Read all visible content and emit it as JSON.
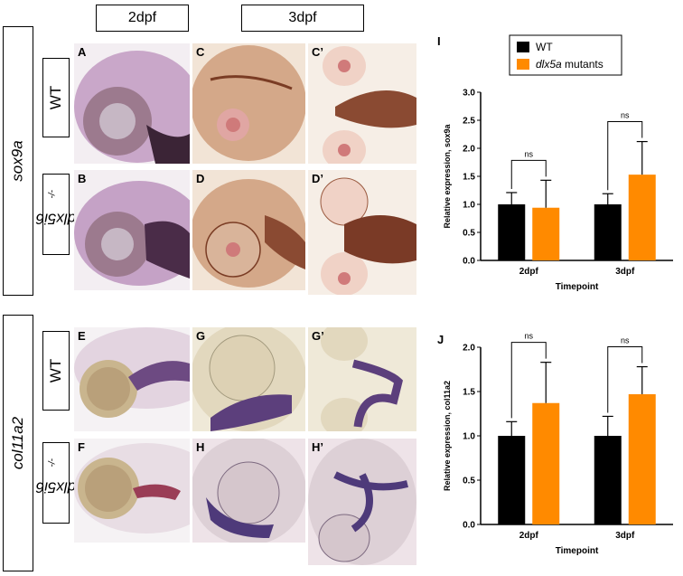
{
  "headers": {
    "col1": "2dpf",
    "col2": "3dpf"
  },
  "genes": {
    "top": "sox9a",
    "bottom": "col11a2"
  },
  "genotypes": {
    "wt": "WT",
    "mut_base": "dlx5i6",
    "mut_sup": "-/-"
  },
  "panels": {
    "A": "A",
    "B": "B",
    "C": "C",
    "C2": "C’",
    "D": "D",
    "D2": "D’",
    "E": "E",
    "F": "F",
    "G": "G",
    "G2": "G’",
    "H": "H",
    "H2": "H’"
  },
  "colors": {
    "wt": "#000000",
    "mutant": "#ff8a00",
    "sox9_stain": "#b06a4a",
    "col_stain": "#6b3f8c"
  },
  "chart_data": [
    {
      "type": "bar",
      "panel_label": "I",
      "categories": [
        "2dpf",
        "3dpf"
      ],
      "series": [
        {
          "name": "WT",
          "values": [
            1.0,
            1.0
          ],
          "errors": [
            0.21,
            0.19
          ]
        },
        {
          "name": "dlx5a mutants",
          "values": [
            0.94,
            1.53
          ],
          "errors": [
            0.49,
            0.59
          ]
        }
      ],
      "xlabel": "Timepoint",
      "ylabel": "Relative expression, sox9a",
      "ylim": [
        0,
        3.0
      ],
      "yticks": [
        "0.0",
        "0.5",
        "1.0",
        "1.5",
        "2.0",
        "2.5",
        "3.0"
      ],
      "significance": [
        "ns",
        "ns"
      ],
      "legend": "top-center"
    },
    {
      "type": "bar",
      "panel_label": "J",
      "categories": [
        "2dpf",
        "3dpf"
      ],
      "series": [
        {
          "name": "WT",
          "values": [
            1.0,
            1.0
          ],
          "errors": [
            0.16,
            0.22
          ]
        },
        {
          "name": "dlx5a mutants",
          "values": [
            1.37,
            1.47
          ],
          "errors": [
            0.46,
            0.31
          ]
        }
      ],
      "xlabel": "Timepoint",
      "ylabel": "Relative expression, col11a2",
      "ylim": [
        0,
        2.0
      ],
      "yticks": [
        "0.0",
        "0.5",
        "1.0",
        "1.5",
        "2.0"
      ],
      "significance": [
        "ns",
        "ns"
      ]
    }
  ]
}
